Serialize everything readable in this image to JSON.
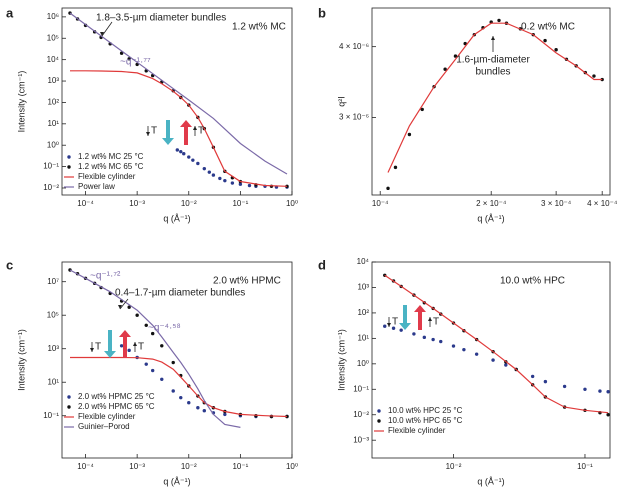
{
  "chart_data": [
    {
      "type": "scatter",
      "panel": "a",
      "xscale": "log",
      "yscale": "log",
      "xlabel": "q (Å⁻¹)",
      "ylabel": "Intensity (cm⁻¹)",
      "xlim": [
        3.5e-05,
        1
      ],
      "ylim": [
        0.0047,
        2600000
      ],
      "xticks": [
        {
          "value": 0.0001,
          "label": "10⁻⁴"
        },
        {
          "value": 0.001,
          "label": "10⁻³"
        },
        {
          "value": 0.01,
          "label": "10⁻²"
        },
        {
          "value": 0.1,
          "label": "10⁻¹"
        },
        {
          "value": 1,
          "label": "10⁰"
        }
      ],
      "yticks": [
        {
          "value": 0.01,
          "label": "10⁻²"
        },
        {
          "value": 0.1,
          "label": "10⁻¹"
        },
        {
          "value": 1,
          "label": "10⁰"
        },
        {
          "value": 10,
          "label": "10¹"
        },
        {
          "value": 100,
          "label": "10²"
        },
        {
          "value": 1000,
          "label": "10³"
        },
        {
          "value": 10000,
          "label": "10⁴"
        },
        {
          "value": 100000,
          "label": "10⁵"
        },
        {
          "value": 1000000,
          "label": "10⁶"
        }
      ],
      "legend": "lower left",
      "annotations": [
        "1.8–3.5-µm diameter bundles",
        "1.2 wt% MC",
        "~q⁻¹·⁷⁷",
        "T",
        "T"
      ],
      "series": [
        {
          "name": "1.2 wt% MC 25 °C",
          "color": "#2b3a8c",
          "marker": "dots",
          "x": [
            0.006,
            0.007,
            0.008,
            0.01,
            0.012,
            0.015,
            0.02,
            0.025,
            0.03,
            0.04,
            0.05,
            0.07,
            0.1,
            0.15,
            0.2,
            0.3,
            0.5,
            0.8
          ],
          "values": [
            0.6,
            0.5,
            0.4,
            0.28,
            0.2,
            0.14,
            0.08,
            0.055,
            0.04,
            0.028,
            0.022,
            0.017,
            0.015,
            0.013,
            0.012,
            0.012,
            0.011,
            0.011
          ]
        },
        {
          "name": "1.2 wt% MC 65 °C",
          "color": "#111111",
          "marker": "dots",
          "x": [
            5e-05,
            7e-05,
            0.0001,
            0.00015,
            0.0002,
            0.0003,
            0.0005,
            0.0007,
            0.001,
            0.0015,
            0.002,
            0.003,
            0.005,
            0.007,
            0.01,
            0.015,
            0.02,
            0.03,
            0.05,
            0.07,
            0.1,
            0.2,
            0.4,
            0.8
          ],
          "values": [
            1500000,
            800000,
            400000,
            200000,
            110000,
            55000,
            20000,
            11000,
            6000,
            3000,
            1800,
            900,
            350,
            170,
            75,
            20,
            6,
            0.8,
            0.06,
            0.03,
            0.02,
            0.014,
            0.012,
            0.012
          ]
        },
        {
          "name": "Flexible cylinder",
          "color": "#e03a3a",
          "marker": "line",
          "x": [
            5e-05,
            0.0001,
            0.0002,
            0.0005,
            0.001,
            0.002,
            0.003,
            0.005,
            0.007,
            0.01,
            0.015,
            0.02,
            0.03,
            0.05,
            0.1,
            0.3,
            0.8
          ],
          "values": [
            3000,
            3000,
            2950,
            2800,
            2400,
            1300,
            750,
            330,
            170,
            75,
            20,
            6,
            0.8,
            0.06,
            0.02,
            0.013,
            0.012
          ]
        },
        {
          "name": "Power law",
          "color": "#7b6aa8",
          "marker": "line",
          "x": [
            5e-05,
            0.0001,
            0.001,
            0.01,
            0.03,
            0.1,
            0.3,
            0.8
          ],
          "values": [
            1500000,
            440000,
            7500,
            130,
            18,
            1.2,
            0.18,
            0.045
          ]
        }
      ]
    },
    {
      "type": "scatter",
      "panel": "b",
      "xscale": "log",
      "yscale": "log",
      "xlabel": "q (Å⁻¹)",
      "ylabel": "q²I",
      "xlim": [
        9.5e-05,
        0.00042
      ],
      "ylim": [
        2.19e-06,
        4.68e-06
      ],
      "xticks": [
        {
          "value": 0.0001,
          "label": "10⁻⁴"
        },
        {
          "value": 0.0002,
          "label": "2 × 10⁻⁴"
        },
        {
          "value": 0.0003,
          "label": "3 × 10⁻⁴"
        },
        {
          "value": 0.0004,
          "label": "4 × 10⁻⁴"
        }
      ],
      "yticks": [
        {
          "value": 3e-06,
          "label": "3 × 10⁻⁶"
        },
        {
          "value": 4e-06,
          "label": "4 × 10⁻⁶"
        }
      ],
      "annotations": [
        "0.2 wt% MC",
        "1.6-µm-diameter",
        "bundles"
      ],
      "series": [
        {
          "color": "#111111",
          "marker": "dots",
          "x": [
            0.000105,
            0.00011,
            0.00012,
            0.00013,
            0.00014,
            0.00015,
            0.00016,
            0.00017,
            0.00018,
            0.00019,
            0.0002,
            0.00021,
            0.00022,
            0.00024,
            0.00026,
            0.00028,
            0.0003,
            0.00032,
            0.00034,
            0.00036,
            0.00038,
            0.0004
          ],
          "values": [
            2.25e-06,
            2.45e-06,
            2.8e-06,
            3.1e-06,
            3.4e-06,
            3.65e-06,
            3.85e-06,
            4.05e-06,
            4.2e-06,
            4.32e-06,
            4.42e-06,
            4.45e-06,
            4.4e-06,
            4.3e-06,
            4.2e-06,
            4.1e-06,
            3.95e-06,
            3.8e-06,
            3.7e-06,
            3.6e-06,
            3.55e-06,
            3.5e-06
          ]
        },
        {
          "color": "#e03a3a",
          "marker": "line",
          "x": [
            0.000105,
            0.00012,
            0.00014,
            0.00016,
            0.00018,
            0.0002,
            0.00022,
            0.00026,
            0.0003,
            0.00034,
            0.00038,
            0.0004
          ],
          "values": [
            2.4e-06,
            2.9e-06,
            3.4e-06,
            3.8e-06,
            4.2e-06,
            4.4e-06,
            4.4e-06,
            4.2e-06,
            3.9e-06,
            3.7e-06,
            3.5e-06,
            3.5e-06
          ]
        }
      ]
    },
    {
      "type": "scatter",
      "panel": "c",
      "xscale": "log",
      "yscale": "log",
      "xlabel": "q (Å⁻¹)",
      "ylabel": "Intensity (cm⁻¹)",
      "xlim": [
        3.5e-05,
        1
      ],
      "ylim": [
        0.0003,
        150000000
      ],
      "xticks": [
        {
          "value": 0.0001,
          "label": "10⁻⁴"
        },
        {
          "value": 0.001,
          "label": "10⁻³"
        },
        {
          "value": 0.01,
          "label": "10⁻²"
        },
        {
          "value": 0.1,
          "label": "10⁻¹"
        },
        {
          "value": 1,
          "label": "10⁰"
        }
      ],
      "yticks": [
        {
          "value": 0.1,
          "label": "10⁻¹"
        },
        {
          "value": 10,
          "label": "10¹"
        },
        {
          "value": 1000,
          "label": "10³"
        },
        {
          "value": 100000,
          "label": "10⁵"
        },
        {
          "value": 10000000,
          "label": "10⁷"
        }
      ],
      "legend": "lower left",
      "annotations": [
        "2.0 wt% HPMC",
        "0.4–1.7-µm diameter bundles",
        "~q⁻¹·⁷²",
        "~q⁻⁴·⁵⁸",
        "T",
        "T"
      ],
      "series": [
        {
          "name": "2.0 wt% HPMC 25 °C",
          "color": "#2b3a8c",
          "marker": "dots",
          "x": [
            0.0005,
            0.0007,
            0.001,
            0.0015,
            0.002,
            0.003,
            0.005,
            0.007,
            0.01,
            0.015,
            0.02,
            0.03,
            0.05,
            0.1,
            0.2,
            0.4,
            0.8
          ],
          "values": [
            1500,
            800,
            300,
            120,
            50,
            15,
            3,
            1.2,
            0.6,
            0.3,
            0.2,
            0.15,
            0.12,
            0.1,
            0.09,
            0.09,
            0.09
          ]
        },
        {
          "name": "2.0 wt% HPMC 65 °C",
          "color": "#111111",
          "marker": "dots",
          "x": [
            5e-05,
            7e-05,
            0.0001,
            0.00015,
            0.0002,
            0.0003,
            0.0005,
            0.0007,
            0.001,
            0.0015,
            0.002,
            0.003,
            0.005,
            0.007,
            0.01,
            0.015,
            0.02,
            0.03,
            0.05,
            0.1,
            0.2,
            0.4,
            0.8
          ],
          "values": [
            50000000,
            30000000,
            16000000,
            8000000,
            4500000,
            2000000,
            700000,
            300000,
            100000,
            25000,
            8000,
            1500,
            150,
            25,
            6,
            1.5,
            0.6,
            0.3,
            0.18,
            0.12,
            0.1,
            0.09,
            0.09
          ]
        },
        {
          "name": "Flexible cylinder",
          "color": "#e03a3a",
          "marker": "line",
          "x": [
            5e-05,
            0.0001,
            0.0005,
            0.001,
            0.002,
            0.003,
            0.005,
            0.007,
            0.01,
            0.015,
            0.02,
            0.03,
            0.05,
            0.1,
            0.3,
            0.8
          ],
          "values": [
            300,
            300,
            300,
            290,
            240,
            160,
            60,
            20,
            6,
            1.5,
            0.6,
            0.3,
            0.18,
            0.12,
            0.1,
            0.09
          ]
        },
        {
          "name": "Guinier–Porod",
          "color": "#7b6aa8",
          "marker": "line",
          "x": [
            5e-05,
            0.0001,
            0.0003,
            0.001,
            0.002,
            0.003,
            0.005,
            0.007,
            0.01,
            0.015,
            0.02,
            0.03,
            0.05,
            0.1
          ],
          "values": [
            50000000,
            16000000,
            2500000,
            200000,
            25000,
            5000,
            600,
            150,
            30,
            4,
            0.8,
            0.12,
            0.03,
            0.02
          ]
        }
      ]
    },
    {
      "type": "scatter",
      "panel": "d",
      "xscale": "log",
      "yscale": "log",
      "xlabel": "q (Å⁻¹)",
      "ylabel": "Intensity (cm⁻¹)",
      "xlim": [
        0.0024,
        0.155
      ],
      "ylim": [
        0.0002,
        10000
      ],
      "xticks": [
        {
          "value": 0.01,
          "label": "10⁻²"
        },
        {
          "value": 0.1,
          "label": "10⁻¹"
        }
      ],
      "yticks": [
        {
          "value": 0.001,
          "label": "10⁻³"
        },
        {
          "value": 0.01,
          "label": "10⁻²"
        },
        {
          "value": 0.1,
          "label": "10⁻¹"
        },
        {
          "value": 1,
          "label": "10⁰"
        },
        {
          "value": 10,
          "label": "10¹"
        },
        {
          "value": 100,
          "label": "10²"
        },
        {
          "value": 1000,
          "label": "10³"
        },
        {
          "value": 10000,
          "label": "10⁴"
        }
      ],
      "legend": "lower left",
      "annotations": [
        "10.0 wt% HPC",
        "T",
        "T"
      ],
      "series": [
        {
          "name": "10.0 wt% HPC 25 °C",
          "color": "#2b3a8c",
          "marker": "dots",
          "x": [
            0.003,
            0.0035,
            0.004,
            0.005,
            0.006,
            0.007,
            0.008,
            0.01,
            0.012,
            0.015,
            0.02,
            0.025,
            0.03,
            0.04,
            0.05,
            0.07,
            0.1,
            0.13,
            0.15
          ],
          "values": [
            30,
            25,
            21,
            15,
            11,
            9,
            7.5,
            5,
            3.6,
            2.4,
            1.4,
            0.9,
            0.6,
            0.32,
            0.2,
            0.13,
            0.1,
            0.085,
            0.08
          ]
        },
        {
          "name": "10.0 wt% HPC 65 °C",
          "color": "#111111",
          "marker": "dots",
          "x": [
            0.003,
            0.0035,
            0.004,
            0.005,
            0.006,
            0.007,
            0.008,
            0.01,
            0.012,
            0.015,
            0.02,
            0.025,
            0.03,
            0.04,
            0.05,
            0.07,
            0.1,
            0.13,
            0.15
          ],
          "values": [
            3000,
            1800,
            1100,
            500,
            250,
            150,
            90,
            40,
            20,
            9,
            3,
            1.2,
            0.6,
            0.15,
            0.05,
            0.02,
            0.015,
            0.012,
            0.01
          ]
        },
        {
          "name": "Flexible cylinder",
          "color": "#e03a3a",
          "marker": "line",
          "x": [
            0.003,
            0.004,
            0.005,
            0.007,
            0.01,
            0.015,
            0.02,
            0.03,
            0.04,
            0.05,
            0.07,
            0.1,
            0.15
          ],
          "values": [
            3000,
            1100,
            500,
            150,
            40,
            9,
            3,
            0.6,
            0.15,
            0.05,
            0.02,
            0.015,
            0.012
          ]
        }
      ]
    }
  ]
}
